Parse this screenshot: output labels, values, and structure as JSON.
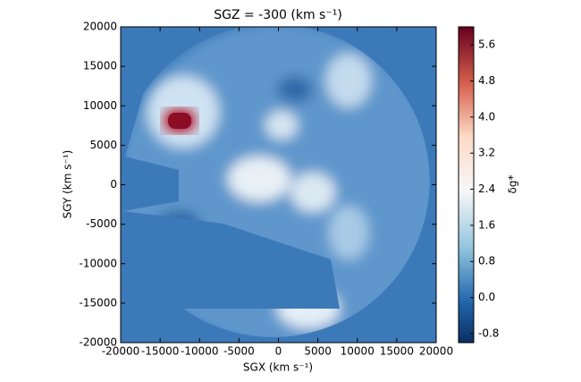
{
  "chart_data": {
    "type": "heatmap",
    "title": "SGZ = -300 (km s⁻¹)",
    "x_label": "SGX (km s⁻¹)",
    "y_label": "SGY (km s⁻¹)",
    "xlim": [
      -20000,
      20000
    ],
    "ylim": [
      -20000,
      20000
    ],
    "xticks": [
      -20000,
      -15000,
      -10000,
      -5000,
      0,
      5000,
      10000,
      15000,
      20000
    ],
    "yticks": [
      -20000,
      -15000,
      -10000,
      -5000,
      0,
      5000,
      10000,
      15000,
      20000
    ],
    "colormap": "RdBu_r",
    "colorbar": {
      "label": "δg*",
      "lim": [
        -1.0,
        6.0
      ],
      "ticks": [
        -0.8,
        {
          "value": 0,
          "label": "0.0"
        },
        0.8,
        1.6,
        2.4,
        3.2,
        {
          "value": 4,
          "label": "4.0"
        },
        4.8,
        5.6
      ]
    }
  }
}
